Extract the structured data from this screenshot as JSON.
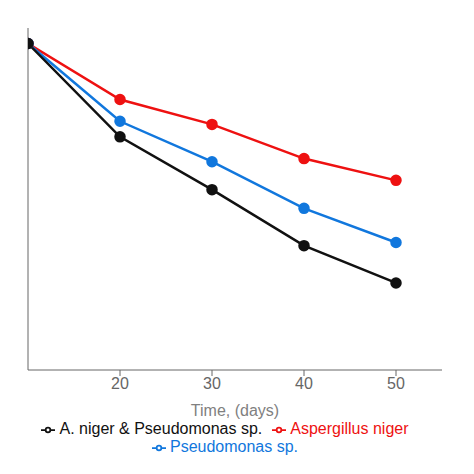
{
  "chart_data": {
    "type": "line",
    "xlabel": "Time, (days)",
    "x": [
      10,
      20,
      30,
      40,
      50
    ],
    "series": [
      {
        "name": "Aspergillus niger",
        "color": "#ee1111",
        "values": [
          100,
          82,
          74,
          63,
          56
        ],
        "marker": "circle"
      },
      {
        "name": "Pseudomonas sp.",
        "color": "#1177dd",
        "values": [
          100,
          75,
          62,
          47,
          36
        ],
        "marker": "circle"
      },
      {
        "name": "A. niger & Pseudomonas sp.",
        "color": "#111111",
        "values": [
          100,
          70,
          53,
          35,
          23
        ],
        "marker": "circle"
      }
    ],
    "xlim": [
      10,
      55
    ],
    "xticks": [
      20,
      30,
      40,
      50
    ],
    "ylim": [
      -5,
      105
    ],
    "tick_labels": "x",
    "legend": "bottom"
  }
}
